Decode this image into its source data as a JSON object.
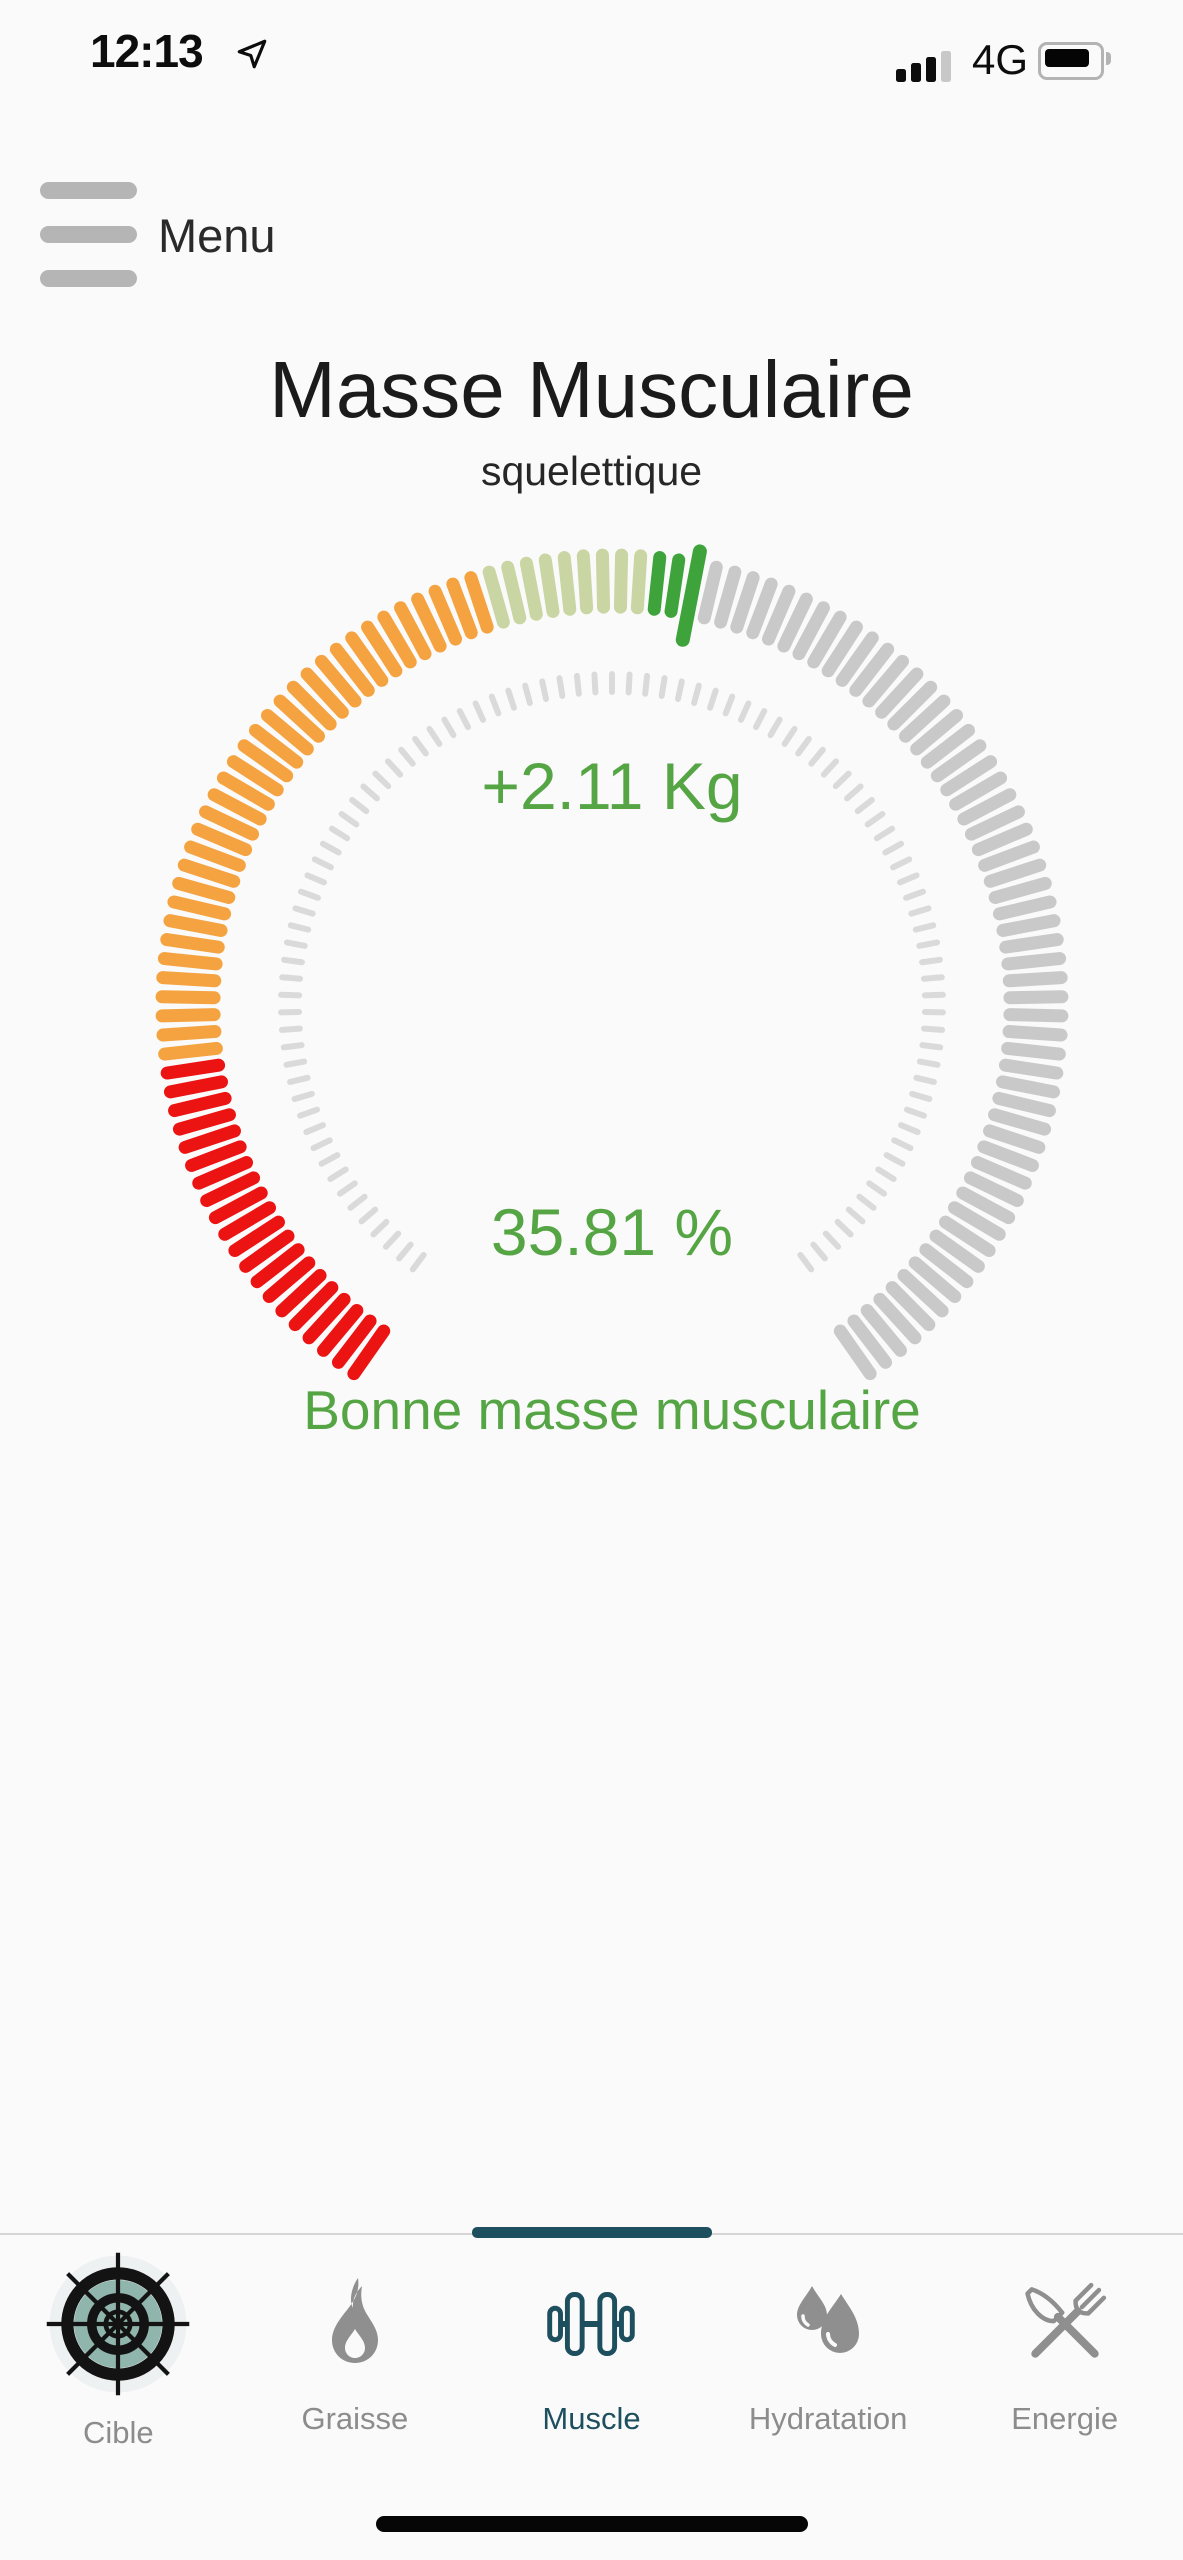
{
  "status_bar": {
    "time": "12:13",
    "network": "4G",
    "signal_bars_filled": 3,
    "signal_bars_total": 4,
    "battery_level_percent": 80
  },
  "menu": {
    "label": "Menu"
  },
  "header": {
    "title": "Masse Musculaire",
    "subtitle": "squelettique"
  },
  "gauge": {
    "delta": "+2.11 Kg",
    "percent": "35.81 %",
    "status": "Bonne masse musculaire",
    "text_color": "#55a545",
    "arc": {
      "start_deg": -145,
      "end_deg": 145,
      "tick_count": 120,
      "segments": [
        {
          "name": "low-red",
          "color": "#ec1313",
          "from": 0,
          "to": 19
        },
        {
          "name": "below-orange",
          "color": "#f4a340",
          "from": 20,
          "to": 52
        },
        {
          "name": "normal-light-green",
          "color": "#c9d5a2",
          "from": 53,
          "to": 61
        },
        {
          "name": "good-green",
          "color": "#3fa33c",
          "from": 62,
          "to": 63
        },
        {
          "name": "remaining-gray",
          "color": "#c9c9c9",
          "from": 65,
          "to": 119
        }
      ],
      "indicator": {
        "index": 64,
        "color": "#3fa33c"
      }
    },
    "inner_ring": {
      "start_deg": -143,
      "end_deg": 143,
      "tick_count": 95,
      "color": "#dadada"
    }
  },
  "tab_bar": {
    "active_tab": "Muscle",
    "active_color": "#1d4f5e",
    "inactive_icon_color": "#8f8f8f",
    "inactive_label_color": "#8c8c8c",
    "tabs": [
      {
        "label": "Cible",
        "icon": "target-icon",
        "active": false
      },
      {
        "label": "Graisse",
        "icon": "flame-icon",
        "active": false
      },
      {
        "label": "Muscle",
        "icon": "dumbbell-icon",
        "active": true
      },
      {
        "label": "Hydratation",
        "icon": "water-drops-icon",
        "active": false
      },
      {
        "label": "Energie",
        "icon": "cutlery-icon",
        "active": false
      }
    ]
  }
}
